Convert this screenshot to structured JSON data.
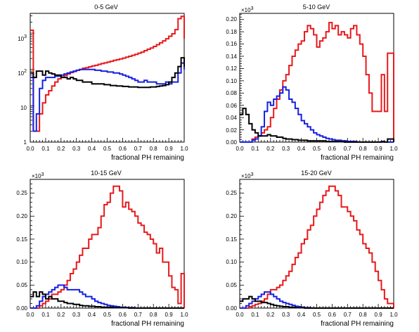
{
  "chart_data": [
    {
      "type": "histogram",
      "title": "0-5 GeV",
      "xlabel": "fractional PH remaining",
      "ylabel": "",
      "xlim": [
        0.0,
        1.0
      ],
      "ylim": [
        1,
        3500
      ],
      "yscale": "log",
      "bin_width": 0.02,
      "x_ticks": [
        "0.0",
        "0.1",
        "0.2",
        "0.3",
        "0.4",
        "0.5",
        "0.6",
        "0.7",
        "0.8",
        "0.9",
        "1.0"
      ],
      "y_ticks": [
        {
          "value": 1,
          "base": "1",
          "exp": ""
        },
        {
          "value": 10,
          "base": "10",
          "exp": ""
        },
        {
          "value": 100,
          "base": "10",
          "exp": "2"
        },
        {
          "value": 1000,
          "base": "10",
          "exp": "3"
        }
      ],
      "y_multiplier": "",
      "series": [
        {
          "color": "#e8191c",
          "values": [
            1200,
            2,
            2,
            6,
            12,
            20,
            26,
            35,
            45,
            55,
            62,
            68,
            75,
            82,
            88,
            95,
            100,
            108,
            112,
            118,
            125,
            130,
            138,
            145,
            152,
            160,
            168,
            178,
            185,
            195,
            205,
            218,
            230,
            245,
            260,
            280,
            300,
            330,
            360,
            390,
            430,
            480,
            540,
            610,
            700,
            820,
            960,
            1250,
            2500,
            2900,
            700
          ]
        },
        {
          "color": "#1620e0",
          "values": [
            60,
            2,
            6,
            30,
            50,
            60,
            60,
            60,
            65,
            65,
            70,
            75,
            80,
            85,
            90,
            95,
            100,
            100,
            100,
            100,
            100,
            95,
            95,
            90,
            90,
            85,
            85,
            80,
            80,
            75,
            70,
            65,
            60,
            55,
            50,
            45,
            45,
            50,
            45,
            45,
            45,
            40,
            40,
            40,
            45,
            40,
            45,
            45,
            80,
            150,
            100
          ]
        },
        {
          "color": "#000000",
          "values": [
            80,
            60,
            90,
            90,
            70,
            90,
            80,
            75,
            70,
            70,
            60,
            60,
            55,
            60,
            55,
            50,
            50,
            45,
            45,
            45,
            40,
            40,
            40,
            40,
            38,
            38,
            36,
            36,
            35,
            35,
            34,
            34,
            33,
            33,
            33,
            32,
            32,
            32,
            32,
            33,
            33,
            34,
            35,
            36,
            38,
            45,
            60,
            80,
            120,
            210,
            120
          ]
        }
      ]
    },
    {
      "type": "histogram",
      "title": "5-10 GeV",
      "xlabel": "fractional PH remaining",
      "ylabel": "",
      "xlim": [
        0.0,
        1.0
      ],
      "ylim": [
        0,
        0.21
      ],
      "yscale": "linear",
      "bin_width": 0.02,
      "x_ticks": [
        "0.0",
        "0.1",
        "0.2",
        "0.3",
        "0.4",
        "0.5",
        "0.6",
        "0.7",
        "0.8",
        "0.9",
        "1.0"
      ],
      "y_ticks": [
        {
          "value": 0,
          "label": "0.00"
        },
        {
          "value": 0.02,
          "label": "0.02"
        },
        {
          "value": 0.04,
          "label": "0.04"
        },
        {
          "value": 0.06,
          "label": "0.06"
        },
        {
          "value": 0.08,
          "label": "0.08"
        },
        {
          "value": 0.1,
          "label": "0.10"
        },
        {
          "value": 0.12,
          "label": "0.12"
        },
        {
          "value": 0.14,
          "label": "0.14"
        },
        {
          "value": 0.16,
          "label": "0.16"
        },
        {
          "value": 0.18,
          "label": "0.18"
        },
        {
          "value": 0.2,
          "label": "0.20"
        }
      ],
      "y_multiplier": "×10",
      "y_multiplier_exp": "3",
      "series": [
        {
          "color": "#e8191c",
          "values": [
            0,
            0,
            0,
            0,
            0.005,
            0.008,
            0.01,
            0.015,
            0.02,
            0.025,
            0.04,
            0.055,
            0.07,
            0.085,
            0.1,
            0.11,
            0.125,
            0.14,
            0.15,
            0.16,
            0.165,
            0.18,
            0.19,
            0.185,
            0.175,
            0.155,
            0.165,
            0.17,
            0.18,
            0.195,
            0.185,
            0.19,
            0.175,
            0.18,
            0.175,
            0.17,
            0.185,
            0.19,
            0.175,
            0.16,
            0.14,
            0.11,
            0.08,
            0.05,
            0.05,
            0.05,
            0.11,
            0.05,
            0.145,
            0.145,
            0
          ]
        },
        {
          "color": "#1620e0",
          "values": [
            0,
            0,
            0,
            0,
            0.003,
            0.005,
            0.01,
            0.025,
            0.05,
            0.065,
            0.06,
            0.07,
            0.075,
            0.08,
            0.09,
            0.085,
            0.07,
            0.065,
            0.055,
            0.045,
            0.035,
            0.03,
            0.025,
            0.02,
            0.015,
            0.012,
            0.01,
            0.008,
            0.006,
            0.005,
            0.004,
            0.003,
            0.003,
            0.002,
            0.002,
            0.001,
            0.001,
            0.001,
            0,
            0,
            0,
            0,
            0,
            0,
            0,
            0,
            0,
            0,
            0,
            0,
            0
          ]
        },
        {
          "color": "#000000",
          "values": [
            0.045,
            0.055,
            0.045,
            0.03,
            0.02,
            0.015,
            0.01,
            0.01,
            0.01,
            0.012,
            0.01,
            0.01,
            0.008,
            0.008,
            0.006,
            0.005,
            0.005,
            0.004,
            0.004,
            0.003,
            0.003,
            0.003,
            0.002,
            0.002,
            0.002,
            0.002,
            0.002,
            0.002,
            0.001,
            0.001,
            0.001,
            0.001,
            0.001,
            0.001,
            0,
            0,
            0,
            0,
            0,
            0,
            0,
            0,
            0,
            0,
            0,
            0,
            0.001,
            0,
            0.005,
            0.005,
            0
          ]
        }
      ]
    },
    {
      "type": "histogram",
      "title": "10-15 GeV",
      "xlabel": "fractional PH remaining",
      "ylabel": "",
      "xlim": [
        0.0,
        1.0
      ],
      "ylim": [
        0,
        0.28
      ],
      "yscale": "linear",
      "bin_width": 0.02,
      "x_ticks": [
        "0.0",
        "0.1",
        "0.2",
        "0.3",
        "0.4",
        "0.5",
        "0.6",
        "0.7",
        "0.8",
        "0.9",
        "1.0"
      ],
      "y_ticks": [
        {
          "value": 0,
          "label": "0.00"
        },
        {
          "value": 0.05,
          "label": "0.05"
        },
        {
          "value": 0.1,
          "label": "0.10"
        },
        {
          "value": 0.15,
          "label": "0.15"
        },
        {
          "value": 0.2,
          "label": "0.20"
        },
        {
          "value": 0.25,
          "label": "0.25"
        }
      ],
      "y_multiplier": "×10",
      "y_multiplier_exp": "3",
      "series": [
        {
          "color": "#e8191c",
          "values": [
            0,
            0,
            0,
            0.005,
            0.01,
            0.015,
            0.02,
            0.03,
            0.03,
            0.035,
            0.04,
            0.05,
            0.06,
            0.075,
            0.085,
            0.1,
            0.115,
            0.13,
            0.13,
            0.15,
            0.16,
            0.16,
            0.175,
            0.2,
            0.225,
            0.23,
            0.25,
            0.265,
            0.265,
            0.255,
            0.22,
            0.23,
            0.215,
            0.21,
            0.2,
            0.185,
            0.18,
            0.165,
            0.16,
            0.15,
            0.14,
            0.12,
            0.13,
            0.1,
            0.1,
            0.07,
            0.045,
            0.04,
            0.01,
            0.075,
            0
          ]
        },
        {
          "color": "#1620e0",
          "values": [
            0,
            0,
            0.005,
            0.015,
            0.025,
            0.03,
            0.035,
            0.04,
            0.045,
            0.05,
            0.05,
            0.045,
            0.04,
            0.04,
            0.04,
            0.04,
            0.035,
            0.03,
            0.025,
            0.025,
            0.02,
            0.015,
            0.012,
            0.01,
            0.008,
            0.006,
            0.005,
            0.004,
            0.003,
            0.002,
            0.002,
            0.001,
            0.001,
            0.001,
            0,
            0,
            0,
            0,
            0,
            0,
            0,
            0,
            0,
            0,
            0,
            0,
            0,
            0,
            0,
            0,
            0
          ]
        },
        {
          "color": "#000000",
          "values": [
            0.025,
            0.035,
            0.025,
            0.035,
            0.03,
            0.02,
            0.025,
            0.02,
            0.02,
            0.015,
            0.015,
            0.012,
            0.01,
            0.01,
            0.008,
            0.008,
            0.006,
            0.005,
            0.005,
            0.004,
            0.004,
            0.003,
            0.003,
            0.002,
            0.002,
            0.002,
            0.002,
            0.001,
            0.001,
            0.001,
            0.001,
            0.001,
            0,
            0,
            0,
            0,
            0,
            0,
            0,
            0,
            0,
            0,
            0,
            0,
            0,
            0,
            0,
            0,
            0,
            0,
            0
          ]
        }
      ]
    },
    {
      "type": "histogram",
      "title": "15-20 GeV",
      "xlabel": "fractional PH remaining",
      "ylabel": "",
      "xlim": [
        0.0,
        1.0
      ],
      "ylim": [
        0,
        0.28
      ],
      "yscale": "linear",
      "bin_width": 0.02,
      "x_ticks": [
        "0.0",
        "0.1",
        "0.2",
        "0.3",
        "0.4",
        "0.5",
        "0.6",
        "0.7",
        "0.8",
        "0.9",
        "1.0"
      ],
      "y_ticks": [
        {
          "value": 0,
          "label": "0.00"
        },
        {
          "value": 0.05,
          "label": "0.05"
        },
        {
          "value": 0.1,
          "label": "0.10"
        },
        {
          "value": 0.15,
          "label": "0.15"
        },
        {
          "value": 0.2,
          "label": "0.20"
        },
        {
          "value": 0.25,
          "label": "0.25"
        }
      ],
      "y_multiplier": "×10",
      "y_multiplier_exp": "3",
      "series": [
        {
          "color": "#e8191c",
          "values": [
            0,
            0,
            0,
            0.003,
            0.005,
            0.008,
            0.01,
            0.015,
            0.02,
            0.03,
            0.04,
            0.04,
            0.045,
            0.05,
            0.06,
            0.07,
            0.08,
            0.095,
            0.11,
            0.12,
            0.14,
            0.15,
            0.17,
            0.18,
            0.2,
            0.215,
            0.23,
            0.245,
            0.255,
            0.265,
            0.265,
            0.255,
            0.245,
            0.22,
            0.22,
            0.21,
            0.2,
            0.19,
            0.17,
            0.16,
            0.14,
            0.13,
            0.12,
            0.1,
            0.08,
            0.06,
            0.04,
            0.02,
            0.01,
            0.01,
            0
          ]
        },
        {
          "color": "#1620e0",
          "values": [
            0,
            0,
            0.005,
            0.01,
            0.015,
            0.02,
            0.025,
            0.03,
            0.035,
            0.035,
            0.03,
            0.025,
            0.02,
            0.015,
            0.012,
            0.01,
            0.008,
            0.006,
            0.004,
            0.003,
            0.002,
            0.001,
            0.001,
            0,
            0,
            0,
            0,
            0,
            0,
            0,
            0,
            0,
            0,
            0,
            0,
            0,
            0,
            0,
            0,
            0,
            0,
            0,
            0,
            0,
            0,
            0,
            0,
            0,
            0,
            0,
            0
          ]
        },
        {
          "color": "#000000",
          "values": [
            0.015,
            0.02,
            0.02,
            0.025,
            0.02,
            0.015,
            0.015,
            0.012,
            0.012,
            0.01,
            0.008,
            0.006,
            0.005,
            0.004,
            0.003,
            0.003,
            0.002,
            0.002,
            0.001,
            0.001,
            0.001,
            0,
            0,
            0,
            0,
            0,
            0,
            0,
            0,
            0,
            0,
            0,
            0,
            0,
            0,
            0,
            0,
            0,
            0,
            0,
            0,
            0,
            0,
            0,
            0,
            0,
            0,
            0,
            0,
            0,
            0
          ]
        }
      ]
    }
  ]
}
